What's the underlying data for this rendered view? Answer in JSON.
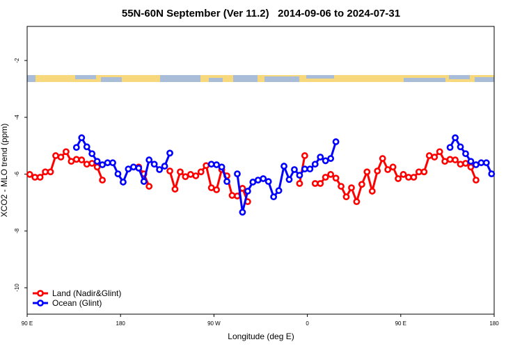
{
  "chart_data": {
    "type": "line",
    "title": "55N-60N September (Ver 11.2)   2014-09-06 to 2024-07-31",
    "xlabel": "Longitude (deg E)",
    "ylabel": "XCO2 - MLO trend (ppm)",
    "xlim": [
      90,
      540
    ],
    "xticks": [
      {
        "value": 90,
        "label": "90 E"
      },
      {
        "value": 180,
        "label": "180"
      },
      {
        "value": 270,
        "label": "90 W"
      },
      {
        "value": 360,
        "label": "0"
      },
      {
        "value": 450,
        "label": "90 E"
      },
      {
        "value": 540,
        "label": "180"
      }
    ],
    "ylim": [
      -10.93,
      -0.8
    ],
    "yticks": [
      -2,
      -4,
      -6,
      -8,
      -10
    ],
    "legend": "bottom-left",
    "x": [
      92.5,
      97.5,
      102.5,
      107.5,
      112.5,
      117.5,
      122.5,
      127.5,
      132.5,
      137.5,
      142.5,
      147.5,
      152.5,
      157.5,
      162.5,
      167.5,
      172.5,
      177.5,
      182.5,
      187.5,
      192.5,
      197.5,
      202.5,
      207.5,
      212.5,
      217.5,
      222.5,
      227.5,
      232.5,
      237.5,
      242.5,
      247.5,
      252.5,
      257.5,
      262.5,
      267.5,
      272.5,
      277.5,
      282.5,
      287.5,
      292.5,
      297.5,
      302.5,
      307.5,
      312.5,
      317.5,
      322.5,
      327.5,
      332.5,
      337.5,
      342.5,
      347.5,
      352.5,
      357.5,
      362.5,
      367.5,
      372.5,
      377.5,
      382.5,
      387.5,
      392.5,
      397.5,
      402.5,
      407.5,
      412.5,
      417.5,
      422.5,
      427.5,
      432.5,
      437.5,
      442.5,
      447.5,
      452.5,
      457.5,
      462.5,
      467.5,
      472.5,
      477.5,
      482.5,
      487.5,
      492.5,
      497.5,
      502.5,
      507.5,
      512.5,
      517.5,
      522.5,
      527.5,
      532.5,
      537.5
    ],
    "series": [
      {
        "name": "Land (Nadir&Glint)",
        "color": "#ff0000",
        "values": [
          -6.01,
          -6.11,
          -6.11,
          -5.92,
          -5.92,
          -5.35,
          -5.4,
          -5.21,
          -5.55,
          -5.48,
          -5.5,
          -5.65,
          -5.62,
          -5.75,
          -6.21,
          null,
          null,
          null,
          null,
          null,
          null,
          -5.75,
          -5.99,
          -6.43,
          null,
          null,
          null,
          -5.89,
          -6.53,
          -5.92,
          -6.09,
          -6.01,
          -6.06,
          -5.92,
          -5.7,
          -6.48,
          -6.55,
          -5.84,
          -6.06,
          -6.75,
          -6.77,
          -6.5,
          -6.97,
          null,
          null,
          null,
          null,
          null,
          null,
          null,
          null,
          null,
          -6.33,
          -5.35,
          null,
          -6.33,
          -6.33,
          -6.11,
          -6.01,
          -6.14,
          -6.43,
          -6.8,
          -6.48,
          -6.97,
          -6.36,
          -5.92,
          -6.6,
          -5.89,
          -5.45,
          -5.84,
          -5.75,
          -6.16,
          -6.01,
          -6.11,
          -6.11,
          -5.92,
          -5.92,
          -5.35,
          -5.4,
          -5.21,
          -5.55,
          -5.48,
          -5.5,
          -5.65,
          -5.62,
          -5.75,
          -6.21,
          null,
          null,
          null
        ]
      },
      {
        "name": "Ocean (Glint)",
        "color": "#0000ff",
        "values": [
          null,
          null,
          null,
          null,
          null,
          null,
          null,
          null,
          null,
          -5.06,
          -4.72,
          -5.04,
          -5.28,
          -5.55,
          -5.67,
          -5.6,
          -5.6,
          -5.99,
          -6.28,
          -5.82,
          -5.75,
          -5.79,
          -6.26,
          -5.5,
          -5.65,
          -5.84,
          -5.72,
          -5.26,
          null,
          null,
          null,
          null,
          null,
          null,
          null,
          -5.65,
          -5.67,
          -5.75,
          -6.26,
          null,
          -5.99,
          -7.34,
          -6.6,
          -6.28,
          -6.21,
          -6.16,
          -6.26,
          -6.8,
          -6.58,
          -5.72,
          -6.19,
          -5.84,
          -6.04,
          -5.82,
          -5.82,
          -5.65,
          -5.4,
          -5.53,
          -5.45,
          -4.86,
          null,
          null,
          null,
          null,
          null,
          null,
          null,
          null,
          null,
          null,
          null,
          null,
          null,
          null,
          null,
          null,
          null,
          null,
          null,
          null,
          null,
          -5.06,
          -4.72,
          -5.04,
          -5.28,
          -5.55,
          -5.67,
          -5.6,
          -5.6,
          -5.99
        ]
      }
    ]
  }
}
